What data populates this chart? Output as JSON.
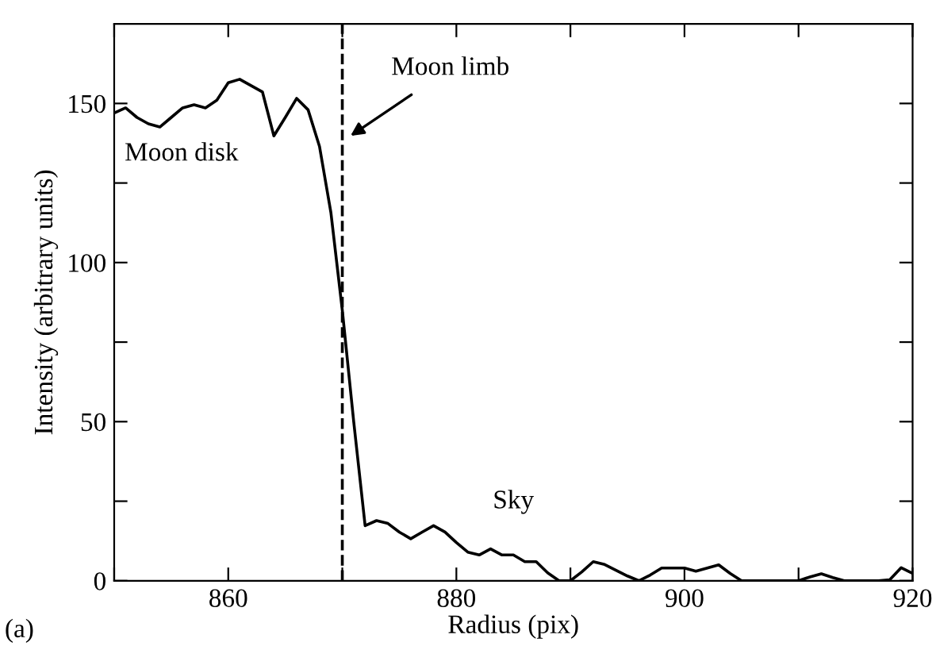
{
  "chart_data": {
    "type": "line",
    "xlabel": "Radius (pix)",
    "ylabel": "Intensity (arbitrary units)",
    "x": [
      850,
      851,
      852,
      853,
      854,
      855,
      856,
      857,
      858,
      859,
      860,
      861,
      862,
      863,
      864,
      865,
      866,
      867,
      868,
      869,
      870,
      871,
      872,
      873,
      874,
      875,
      876,
      877,
      878,
      879,
      880,
      881,
      882,
      883,
      884,
      885,
      886,
      887,
      888,
      889,
      890,
      891,
      892,
      893,
      894,
      895,
      896,
      897,
      898,
      899,
      900,
      901,
      902,
      903,
      904,
      905,
      906,
      907,
      908,
      909,
      910,
      911,
      912,
      913,
      914,
      915,
      916,
      917,
      918,
      919,
      920
    ],
    "series": [
      {
        "color": "#000000",
        "values": [
          147,
          148.6,
          145.6,
          143.6,
          142.6,
          145.6,
          148.6,
          149.6,
          148.6,
          151,
          156.5,
          157.6,
          155.6,
          153.6,
          139.8,
          145.6,
          151.6,
          148,
          136.5,
          115.7,
          85,
          50,
          17.3,
          18.9,
          18,
          15.3,
          13.2,
          15.3,
          17.3,
          15.3,
          12,
          9,
          8.1,
          10,
          8.1,
          8.1,
          6,
          6,
          2.5,
          0,
          0,
          2.8,
          6,
          5.1,
          3.3,
          1.5,
          0,
          1.8,
          4,
          4,
          4,
          3,
          4,
          5,
          2.3,
          0,
          0,
          0,
          0,
          0,
          0,
          1.2,
          2.2,
          1,
          0,
          0,
          0,
          0,
          0.3,
          4.1,
          2.3
        ]
      }
    ],
    "xlim": [
      850,
      920
    ],
    "ylim": [
      0,
      175
    ],
    "xticks": [
      {
        "value": 850,
        "label": null
      },
      860,
      {
        "value": 870,
        "label": null
      },
      880,
      {
        "value": 890,
        "label": null
      },
      900,
      {
        "value": 910,
        "label": null
      },
      920
    ],
    "yticks": [
      0,
      {
        "value": 25,
        "label": null
      },
      50,
      {
        "value": 75,
        "label": null
      },
      100,
      {
        "value": 125,
        "label": null
      },
      150
    ],
    "ref_lines": [
      {
        "axis": "x",
        "value": 870,
        "label": null,
        "color": "#000000",
        "line_style": "dashed"
      }
    ],
    "annotations": [
      "Moon limb",
      "Moon disk",
      "Sky",
      "(a)"
    ],
    "grid": false,
    "legend": false,
    "marker": "none",
    "line_style": "solid"
  }
}
